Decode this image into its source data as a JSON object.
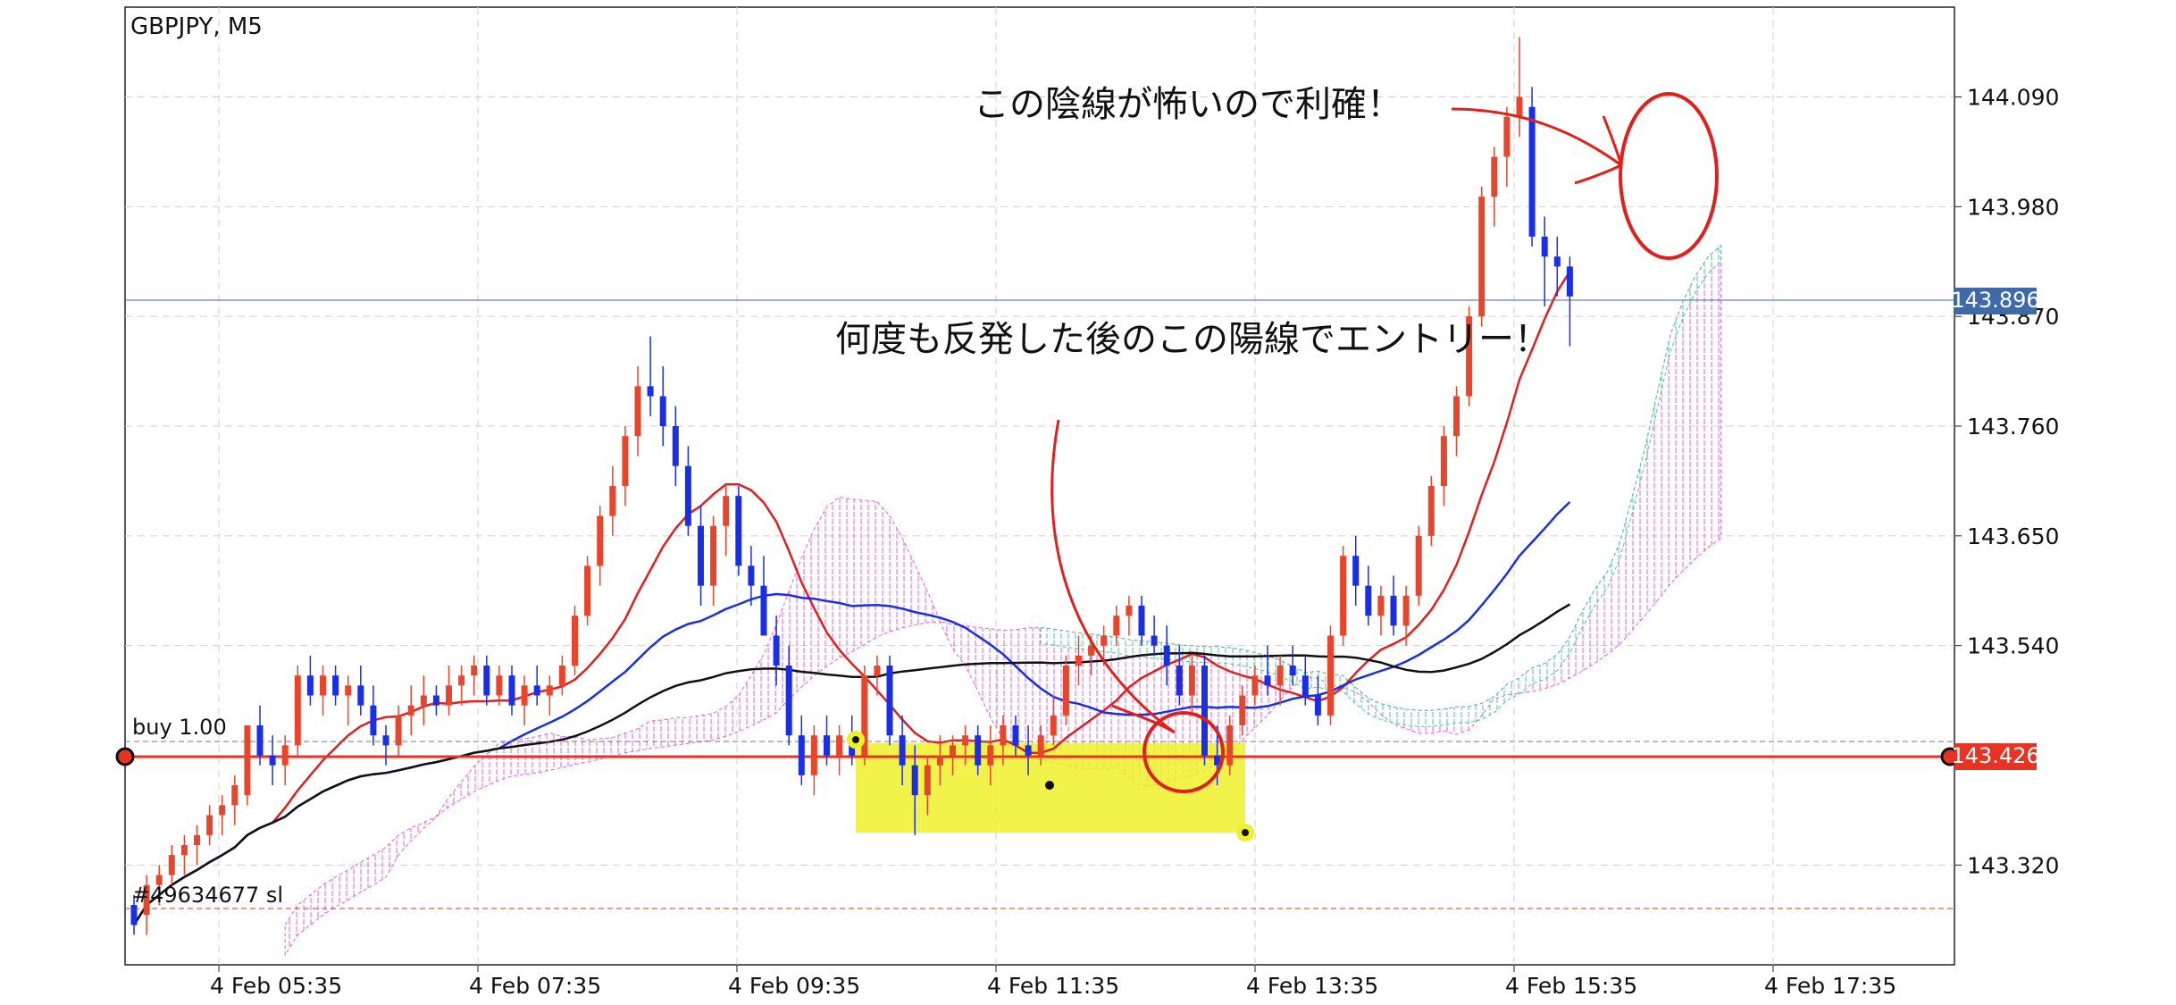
{
  "chart_data": {
    "type": "candlestick",
    "title": "GBPJPY, M5",
    "symbol": "GBPJPY",
    "timeframe": "M5",
    "y_ticks": [
      "144.090",
      "143.980",
      "143.870",
      "143.760",
      "143.650",
      "143.540",
      "143.320"
    ],
    "ylim": [
      143.22,
      144.18
    ],
    "x_ticks": [
      "4 Feb 05:35",
      "4 Feb 07:35",
      "4 Feb 09:35",
      "4 Feb 11:35",
      "4 Feb 13:35",
      "4 Feb 15:35",
      "4 Feb 17:35"
    ],
    "grid": true,
    "current_price_label": "143.896",
    "order_price_label": "143.426",
    "order_label": "buy 1.00",
    "stop_label": "#49634677 sl",
    "colors": {
      "bull": "#e8462c",
      "bear": "#1a2ee6",
      "current_price": "#3f6aa8",
      "order": "#e53423",
      "ma_short": "#e02020",
      "ma_mid": "#1a2ee6",
      "ma_long": "#111111",
      "cloud_a": "#e060e0",
      "cloud_b": "#4fc59a",
      "highlight": "#eef02a"
    },
    "candles_ohlc": [
      [
        143.28,
        143.29,
        143.25,
        143.26
      ],
      [
        143.27,
        143.31,
        143.25,
        143.3
      ],
      [
        143.3,
        143.32,
        143.28,
        143.31
      ],
      [
        143.31,
        143.34,
        143.3,
        143.33
      ],
      [
        143.33,
        143.35,
        143.31,
        143.34
      ],
      [
        143.34,
        143.36,
        143.32,
        143.35
      ],
      [
        143.35,
        143.38,
        143.34,
        143.37
      ],
      [
        143.37,
        143.39,
        143.35,
        143.38
      ],
      [
        143.38,
        143.41,
        143.36,
        143.4
      ],
      [
        143.39,
        143.46,
        143.38,
        143.46
      ],
      [
        143.46,
        143.48,
        143.42,
        143.43
      ],
      [
        143.43,
        143.45,
        143.4,
        143.42
      ],
      [
        143.42,
        143.45,
        143.4,
        143.44
      ],
      [
        143.44,
        143.52,
        143.43,
        143.51
      ],
      [
        143.51,
        143.53,
        143.48,
        143.49
      ],
      [
        143.49,
        143.52,
        143.47,
        143.51
      ],
      [
        143.51,
        143.52,
        143.48,
        143.49
      ],
      [
        143.49,
        143.51,
        143.46,
        143.5
      ],
      [
        143.5,
        143.52,
        143.47,
        143.48
      ],
      [
        143.48,
        143.5,
        143.44,
        143.45
      ],
      [
        143.45,
        143.46,
        143.42,
        143.44
      ],
      [
        143.44,
        143.48,
        143.43,
        143.47
      ],
      [
        143.47,
        143.5,
        143.45,
        143.48
      ],
      [
        143.48,
        143.51,
        143.46,
        143.49
      ],
      [
        143.49,
        143.5,
        143.47,
        143.48
      ],
      [
        143.48,
        143.52,
        143.47,
        143.5
      ],
      [
        143.5,
        143.52,
        143.48,
        143.51
      ],
      [
        143.51,
        143.53,
        143.49,
        143.52
      ],
      [
        143.52,
        143.53,
        143.48,
        143.49
      ],
      [
        143.49,
        143.52,
        143.48,
        143.51
      ],
      [
        143.51,
        143.52,
        143.47,
        143.48
      ],
      [
        143.48,
        143.51,
        143.46,
        143.5
      ],
      [
        143.5,
        143.52,
        143.48,
        143.49
      ],
      [
        143.49,
        143.51,
        143.47,
        143.5
      ],
      [
        143.5,
        143.53,
        143.49,
        143.52
      ],
      [
        143.52,
        143.58,
        143.51,
        143.57
      ],
      [
        143.57,
        143.63,
        143.56,
        143.62
      ],
      [
        143.62,
        143.68,
        143.6,
        143.67
      ],
      [
        143.67,
        143.72,
        143.65,
        143.7
      ],
      [
        143.7,
        143.76,
        143.68,
        143.75
      ],
      [
        143.75,
        143.82,
        143.73,
        143.8
      ],
      [
        143.8,
        143.85,
        143.77,
        143.79
      ],
      [
        143.79,
        143.82,
        143.74,
        143.76
      ],
      [
        143.76,
        143.78,
        143.7,
        143.72
      ],
      [
        143.72,
        143.74,
        143.65,
        143.66
      ],
      [
        143.66,
        143.68,
        143.58,
        143.6
      ],
      [
        143.6,
        143.67,
        143.58,
        143.66
      ],
      [
        143.66,
        143.7,
        143.63,
        143.69
      ],
      [
        143.69,
        143.7,
        143.61,
        143.62
      ],
      [
        143.62,
        143.64,
        143.58,
        143.6
      ],
      [
        143.6,
        143.63,
        143.56,
        143.55
      ],
      [
        143.55,
        143.57,
        143.5,
        143.52
      ],
      [
        143.52,
        143.54,
        143.44,
        143.45
      ],
      [
        143.45,
        143.47,
        143.4,
        143.41
      ],
      [
        143.41,
        143.46,
        143.39,
        143.45
      ],
      [
        143.45,
        143.47,
        143.42,
        143.43
      ],
      [
        143.43,
        143.46,
        143.41,
        143.45
      ],
      [
        143.45,
        143.47,
        143.42,
        143.43
      ],
      [
        143.43,
        143.52,
        143.42,
        143.51
      ],
      [
        143.51,
        143.53,
        143.49,
        143.52
      ],
      [
        143.52,
        143.53,
        143.44,
        143.45
      ],
      [
        143.45,
        143.47,
        143.4,
        143.42
      ],
      [
        143.42,
        143.44,
        143.35,
        143.39
      ],
      [
        143.39,
        143.43,
        143.37,
        143.42
      ],
      [
        143.42,
        143.45,
        143.4,
        143.43
      ],
      [
        143.43,
        143.45,
        143.41,
        143.44
      ],
      [
        143.44,
        143.46,
        143.42,
        143.45
      ],
      [
        143.45,
        143.46,
        143.41,
        143.42
      ],
      [
        143.42,
        143.46,
        143.4,
        143.44
      ],
      [
        143.44,
        143.47,
        143.42,
        143.46
      ],
      [
        143.46,
        143.47,
        143.43,
        143.44
      ],
      [
        143.44,
        143.46,
        143.41,
        143.43
      ],
      [
        143.43,
        143.46,
        143.42,
        143.45
      ],
      [
        143.45,
        143.49,
        143.44,
        143.47
      ],
      [
        143.47,
        143.53,
        143.46,
        143.52
      ],
      [
        143.52,
        143.55,
        143.5,
        143.53
      ],
      [
        143.53,
        143.55,
        143.51,
        143.54
      ],
      [
        143.54,
        143.56,
        143.52,
        143.55
      ],
      [
        143.55,
        143.58,
        143.54,
        143.57
      ],
      [
        143.57,
        143.59,
        143.55,
        143.58
      ],
      [
        143.58,
        143.59,
        143.54,
        143.55
      ],
      [
        143.55,
        143.57,
        143.53,
        143.54
      ],
      [
        143.54,
        143.56,
        143.5,
        143.52
      ],
      [
        143.52,
        143.54,
        143.48,
        143.49
      ],
      [
        143.49,
        143.53,
        143.47,
        143.52
      ],
      [
        143.52,
        143.53,
        143.42,
        143.43
      ],
      [
        143.43,
        143.46,
        143.4,
        143.42
      ],
      [
        143.42,
        143.47,
        143.41,
        143.46
      ],
      [
        143.46,
        143.5,
        143.45,
        143.49
      ],
      [
        143.49,
        143.52,
        143.48,
        143.51
      ],
      [
        143.51,
        143.54,
        143.49,
        143.5
      ],
      [
        143.5,
        143.53,
        143.48,
        143.52
      ],
      [
        143.52,
        143.54,
        143.5,
        143.51
      ],
      [
        143.51,
        143.53,
        143.48,
        143.49
      ],
      [
        143.49,
        143.51,
        143.46,
        143.47
      ],
      [
        143.47,
        143.56,
        143.46,
        143.55
      ],
      [
        143.55,
        143.64,
        143.54,
        143.63
      ],
      [
        143.63,
        143.65,
        143.58,
        143.6
      ],
      [
        143.6,
        143.62,
        143.56,
        143.57
      ],
      [
        143.57,
        143.6,
        143.55,
        143.59
      ],
      [
        143.59,
        143.61,
        143.55,
        143.56
      ],
      [
        143.56,
        143.6,
        143.54,
        143.59
      ],
      [
        143.59,
        143.66,
        143.58,
        143.65
      ],
      [
        143.65,
        143.71,
        143.64,
        143.7
      ],
      [
        143.7,
        143.76,
        143.68,
        143.75
      ],
      [
        143.75,
        143.8,
        143.73,
        143.79
      ],
      [
        143.79,
        143.88,
        143.78,
        143.87
      ],
      [
        143.87,
        144.0,
        143.86,
        143.99
      ],
      [
        143.99,
        144.04,
        143.96,
        144.03
      ],
      [
        144.03,
        144.08,
        144.0,
        144.07
      ],
      [
        144.07,
        144.15,
        144.05,
        144.09
      ],
      [
        144.08,
        144.1,
        143.94,
        143.95
      ],
      [
        143.95,
        143.97,
        143.88,
        143.93
      ],
      [
        143.93,
        143.95,
        143.89,
        143.92
      ],
      [
        143.92,
        143.93,
        143.84,
        143.89
      ]
    ]
  },
  "annotations": {
    "top_note": "この陰線が怖いので利確！",
    "entry_note": "何度も反発した後のこの陽線でエントリー！"
  }
}
